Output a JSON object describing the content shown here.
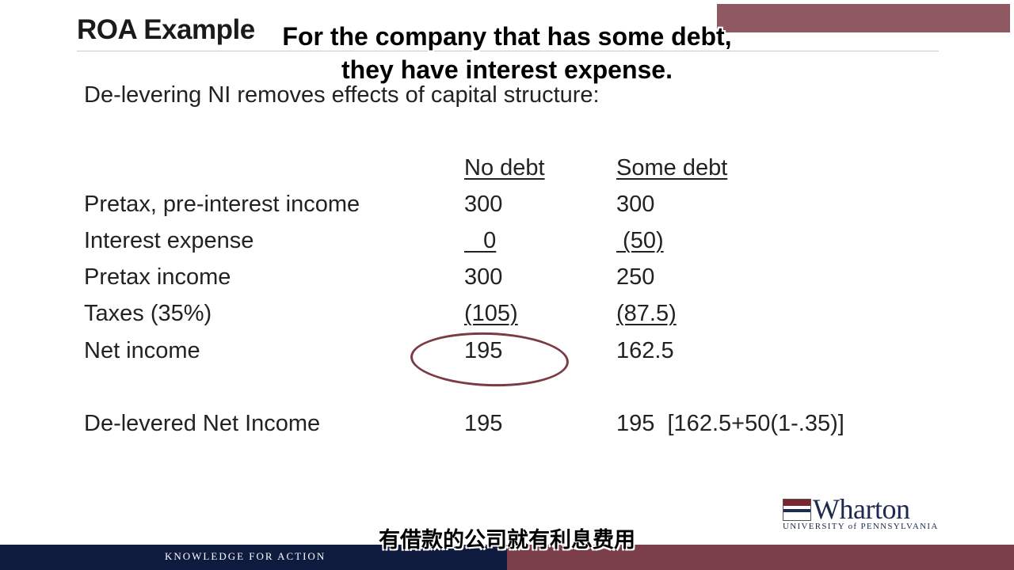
{
  "slide": {
    "title": "ROA Example",
    "subtitle": "De-levering NI removes effects of capital structure:",
    "columns": {
      "no_debt": "No debt",
      "some_debt": "Some debt"
    },
    "rows": [
      {
        "label": "Pretax, pre-interest income",
        "no_debt": "300",
        "some_debt": "300"
      },
      {
        "label": "Interest expense",
        "no_debt": "   0",
        "some_debt": " (50)"
      },
      {
        "label": "Pretax income",
        "no_debt": "300",
        "some_debt": "250"
      },
      {
        "label": "Taxes (35%)",
        "no_debt": "(105)",
        "some_debt": "(87.5)"
      },
      {
        "label": "Net income",
        "no_debt": "195",
        "some_debt": "162.5"
      }
    ],
    "delevered": {
      "label": "De-levered Net Income",
      "no_debt": "195",
      "some_debt": "195  [162.5+50(1-.35)]"
    }
  },
  "captions": {
    "line1": "For the company that has some debt,",
    "line2": "they have interest expense.",
    "chinese": "有借款的公司就有利息费用"
  },
  "logo": {
    "name": "Wharton",
    "sub": "UNIVERSITY of PENNSYLVANIA"
  },
  "footer": {
    "tagline": "KNOWLEDGE FOR ACTION"
  },
  "colors": {
    "navy": "#0e1a3e",
    "maroon": "#7b3f49"
  }
}
